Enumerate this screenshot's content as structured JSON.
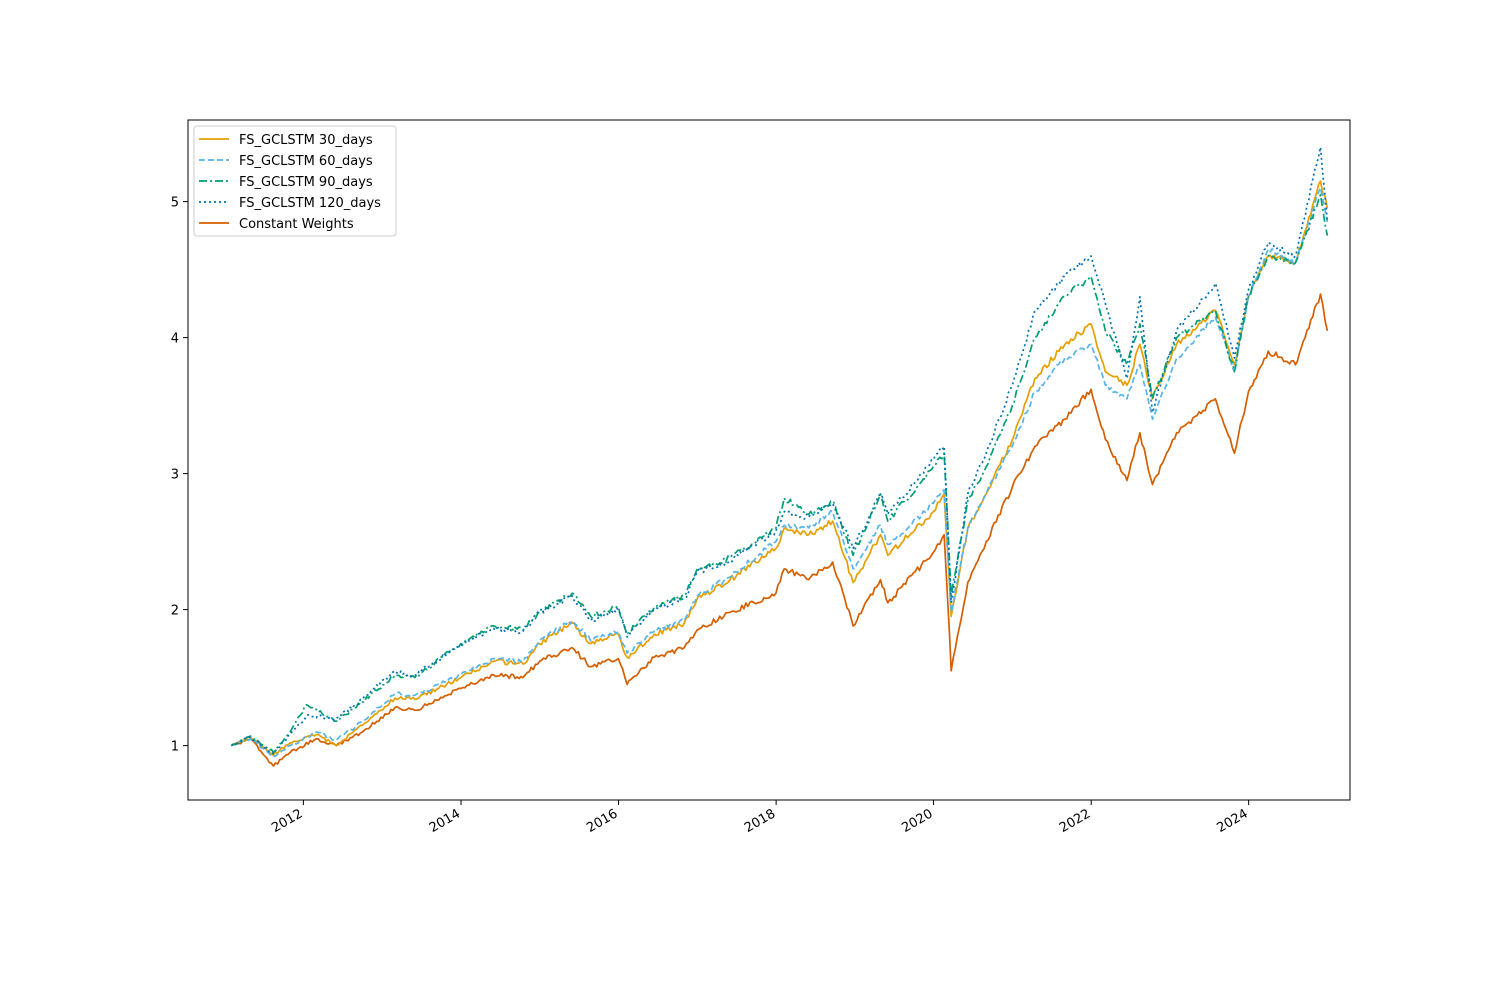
{
  "chart_data": {
    "type": "line",
    "title": "",
    "xlabel": "",
    "ylabel": "",
    "xlim": [
      "2010-07-15",
      "2025-04-15"
    ],
    "ylim": [
      0.6,
      5.6
    ],
    "x_ticks": [
      "2012",
      "2014",
      "2016",
      "2018",
      "2020",
      "2022",
      "2024"
    ],
    "y_ticks": [
      "1",
      "2",
      "3",
      "4",
      "5"
    ],
    "grid": false,
    "legend_position": "top-left",
    "series": [
      {
        "name": "FS_GCLSTM 30_days",
        "color": "#E69F00",
        "dash": "solid",
        "points": [
          [
            "2011-02-01",
            1.0
          ],
          [
            "2011-05-01",
            1.06
          ],
          [
            "2011-08-15",
            0.93
          ],
          [
            "2011-11-01",
            1.02
          ],
          [
            "2012-03-01",
            1.08
          ],
          [
            "2012-06-01",
            1.0
          ],
          [
            "2012-10-01",
            1.15
          ],
          [
            "2013-03-01",
            1.35
          ],
          [
            "2013-06-01",
            1.34
          ],
          [
            "2013-12-31",
            1.5
          ],
          [
            "2014-06-01",
            1.62
          ],
          [
            "2014-10-15",
            1.6
          ],
          [
            "2014-12-31",
            1.75
          ],
          [
            "2015-06-01",
            1.9
          ],
          [
            "2015-08-25",
            1.75
          ],
          [
            "2015-12-31",
            1.82
          ],
          [
            "2016-02-10",
            1.65
          ],
          [
            "2016-06-15",
            1.82
          ],
          [
            "2016-11-01",
            1.9
          ],
          [
            "2016-12-31",
            2.08
          ],
          [
            "2017-06-01",
            2.22
          ],
          [
            "2017-12-31",
            2.45
          ],
          [
            "2018-02-08",
            2.6
          ],
          [
            "2018-06-01",
            2.55
          ],
          [
            "2018-09-20",
            2.65
          ],
          [
            "2018-12-24",
            2.2
          ],
          [
            "2019-04-30",
            2.55
          ],
          [
            "2019-06-03",
            2.4
          ],
          [
            "2019-12-31",
            2.72
          ],
          [
            "2020-02-19",
            2.85
          ],
          [
            "2020-03-23",
            1.95
          ],
          [
            "2020-06-08",
            2.6
          ],
          [
            "2020-09-01",
            2.85
          ],
          [
            "2020-12-31",
            3.25
          ],
          [
            "2021-04-15",
            3.7
          ],
          [
            "2021-09-01",
            3.95
          ],
          [
            "2021-12-31",
            4.1
          ],
          [
            "2022-03-08",
            3.75
          ],
          [
            "2022-06-16",
            3.65
          ],
          [
            "2022-08-15",
            3.95
          ],
          [
            "2022-10-12",
            3.55
          ],
          [
            "2023-02-01",
            3.95
          ],
          [
            "2023-07-31",
            4.2
          ],
          [
            "2023-10-27",
            3.8
          ],
          [
            "2023-12-31",
            4.3
          ],
          [
            "2024-04-01",
            4.6
          ],
          [
            "2024-08-05",
            4.55
          ],
          [
            "2024-11-29",
            5.15
          ],
          [
            "2024-12-31",
            4.95
          ]
        ]
      },
      {
        "name": "FS_GCLSTM 60_days",
        "color": "#56B4E9",
        "dash": "dashed",
        "points": [
          [
            "2011-02-01",
            1.0
          ],
          [
            "2011-05-01",
            1.05
          ],
          [
            "2011-08-15",
            0.92
          ],
          [
            "2011-11-01",
            1.0
          ],
          [
            "2012-03-01",
            1.1
          ],
          [
            "2012-06-01",
            1.04
          ],
          [
            "2012-10-01",
            1.18
          ],
          [
            "2013-03-01",
            1.38
          ],
          [
            "2013-06-01",
            1.37
          ],
          [
            "2013-12-31",
            1.52
          ],
          [
            "2014-06-01",
            1.64
          ],
          [
            "2014-10-15",
            1.62
          ],
          [
            "2014-12-31",
            1.77
          ],
          [
            "2015-06-01",
            1.92
          ],
          [
            "2015-08-25",
            1.77
          ],
          [
            "2015-12-31",
            1.84
          ],
          [
            "2016-02-10",
            1.68
          ],
          [
            "2016-06-15",
            1.84
          ],
          [
            "2016-11-01",
            1.92
          ],
          [
            "2016-12-31",
            2.1
          ],
          [
            "2017-06-01",
            2.24
          ],
          [
            "2017-12-31",
            2.5
          ],
          [
            "2018-02-08",
            2.62
          ],
          [
            "2018-06-01",
            2.6
          ],
          [
            "2018-09-20",
            2.72
          ],
          [
            "2018-12-24",
            2.3
          ],
          [
            "2019-04-30",
            2.62
          ],
          [
            "2019-06-03",
            2.48
          ],
          [
            "2019-12-31",
            2.78
          ],
          [
            "2020-02-19",
            2.88
          ],
          [
            "2020-03-23",
            1.98
          ],
          [
            "2020-06-08",
            2.6
          ],
          [
            "2020-09-01",
            2.85
          ],
          [
            "2020-12-31",
            3.2
          ],
          [
            "2021-04-15",
            3.6
          ],
          [
            "2021-09-01",
            3.85
          ],
          [
            "2021-12-31",
            3.95
          ],
          [
            "2022-03-08",
            3.65
          ],
          [
            "2022-06-16",
            3.55
          ],
          [
            "2022-08-15",
            3.8
          ],
          [
            "2022-10-12",
            3.4
          ],
          [
            "2023-02-01",
            3.85
          ],
          [
            "2023-07-31",
            4.15
          ],
          [
            "2023-10-27",
            3.75
          ],
          [
            "2023-12-31",
            4.3
          ],
          [
            "2024-04-01",
            4.65
          ],
          [
            "2024-08-05",
            4.55
          ],
          [
            "2024-11-29",
            5.1
          ],
          [
            "2024-12-31",
            4.85
          ]
        ]
      },
      {
        "name": "FS_GCLSTM 90_days",
        "color": "#009E73",
        "dash": "dashdot",
        "points": [
          [
            "2011-02-01",
            1.0
          ],
          [
            "2011-05-01",
            1.07
          ],
          [
            "2011-08-15",
            0.95
          ],
          [
            "2011-11-01",
            1.1
          ],
          [
            "2012-01-15",
            1.3
          ],
          [
            "2012-06-01",
            1.18
          ],
          [
            "2012-10-01",
            1.32
          ],
          [
            "2013-03-01",
            1.52
          ],
          [
            "2013-06-01",
            1.5
          ],
          [
            "2013-12-31",
            1.75
          ],
          [
            "2014-06-01",
            1.88
          ],
          [
            "2014-10-15",
            1.85
          ],
          [
            "2014-12-31",
            1.98
          ],
          [
            "2015-06-01",
            2.12
          ],
          [
            "2015-08-25",
            1.95
          ],
          [
            "2015-12-31",
            2.02
          ],
          [
            "2016-02-10",
            1.82
          ],
          [
            "2016-06-15",
            2.02
          ],
          [
            "2016-11-01",
            2.1
          ],
          [
            "2016-12-31",
            2.3
          ],
          [
            "2017-06-01",
            2.38
          ],
          [
            "2017-12-31",
            2.6
          ],
          [
            "2018-02-08",
            2.82
          ],
          [
            "2018-06-01",
            2.7
          ],
          [
            "2018-09-20",
            2.8
          ],
          [
            "2018-12-24",
            2.4
          ],
          [
            "2019-04-30",
            2.85
          ],
          [
            "2019-06-03",
            2.65
          ],
          [
            "2019-12-31",
            3.05
          ],
          [
            "2020-02-19",
            3.15
          ],
          [
            "2020-03-23",
            2.1
          ],
          [
            "2020-06-08",
            2.8
          ],
          [
            "2020-09-01",
            3.05
          ],
          [
            "2020-12-31",
            3.5
          ],
          [
            "2021-04-15",
            4.0
          ],
          [
            "2021-09-01",
            4.3
          ],
          [
            "2021-12-31",
            4.45
          ],
          [
            "2022-03-08",
            4.05
          ],
          [
            "2022-06-16",
            3.8
          ],
          [
            "2022-08-15",
            4.1
          ],
          [
            "2022-10-12",
            3.55
          ],
          [
            "2023-02-01",
            4.0
          ],
          [
            "2023-07-31",
            4.2
          ],
          [
            "2023-10-27",
            3.75
          ],
          [
            "2023-12-31",
            4.3
          ],
          [
            "2024-04-01",
            4.6
          ],
          [
            "2024-08-05",
            4.55
          ],
          [
            "2024-11-29",
            5.05
          ],
          [
            "2024-12-31",
            4.75
          ]
        ]
      },
      {
        "name": "FS_GCLSTM 120_days",
        "color": "#0072B2",
        "dash": "dotted",
        "points": [
          [
            "2011-02-01",
            1.0
          ],
          [
            "2011-05-01",
            1.06
          ],
          [
            "2011-08-15",
            0.94
          ],
          [
            "2011-11-01",
            1.08
          ],
          [
            "2012-01-15",
            1.22
          ],
          [
            "2012-06-01",
            1.2
          ],
          [
            "2012-10-01",
            1.34
          ],
          [
            "2013-03-01",
            1.55
          ],
          [
            "2013-06-01",
            1.52
          ],
          [
            "2013-12-31",
            1.74
          ],
          [
            "2014-06-01",
            1.86
          ],
          [
            "2014-10-15",
            1.84
          ],
          [
            "2014-12-31",
            1.98
          ],
          [
            "2015-06-01",
            2.1
          ],
          [
            "2015-08-25",
            1.92
          ],
          [
            "2015-12-31",
            2.0
          ],
          [
            "2016-02-10",
            1.8
          ],
          [
            "2016-06-15",
            2.0
          ],
          [
            "2016-11-01",
            2.08
          ],
          [
            "2016-12-31",
            2.28
          ],
          [
            "2017-06-01",
            2.36
          ],
          [
            "2017-12-31",
            2.58
          ],
          [
            "2018-02-08",
            2.72
          ],
          [
            "2018-06-01",
            2.68
          ],
          [
            "2018-09-20",
            2.78
          ],
          [
            "2018-12-24",
            2.45
          ],
          [
            "2019-04-30",
            2.85
          ],
          [
            "2019-06-03",
            2.7
          ],
          [
            "2019-12-31",
            3.1
          ],
          [
            "2020-02-19",
            3.2
          ],
          [
            "2020-03-23",
            2.05
          ],
          [
            "2020-06-08",
            2.85
          ],
          [
            "2020-09-01",
            3.15
          ],
          [
            "2020-12-31",
            3.65
          ],
          [
            "2021-04-15",
            4.2
          ],
          [
            "2021-09-01",
            4.45
          ],
          [
            "2021-12-31",
            4.6
          ],
          [
            "2022-03-08",
            4.25
          ],
          [
            "2022-06-16",
            3.7
          ],
          [
            "2022-08-15",
            4.3
          ],
          [
            "2022-10-12",
            3.45
          ],
          [
            "2023-02-01",
            4.05
          ],
          [
            "2023-07-31",
            4.4
          ],
          [
            "2023-10-27",
            3.85
          ],
          [
            "2023-12-31",
            4.35
          ],
          [
            "2024-04-01",
            4.7
          ],
          [
            "2024-08-05",
            4.6
          ],
          [
            "2024-11-29",
            5.4
          ],
          [
            "2024-12-31",
            4.85
          ]
        ]
      },
      {
        "name": "Constant Weights",
        "color": "#D55E00",
        "dash": "solid",
        "points": [
          [
            "2011-02-01",
            1.0
          ],
          [
            "2011-05-01",
            1.05
          ],
          [
            "2011-08-15",
            0.85
          ],
          [
            "2011-11-01",
            0.95
          ],
          [
            "2012-03-01",
            1.05
          ],
          [
            "2012-06-01",
            1.0
          ],
          [
            "2012-10-01",
            1.1
          ],
          [
            "2013-03-01",
            1.28
          ],
          [
            "2013-06-01",
            1.26
          ],
          [
            "2013-12-31",
            1.42
          ],
          [
            "2014-06-01",
            1.52
          ],
          [
            "2014-10-15",
            1.5
          ],
          [
            "2014-12-31",
            1.62
          ],
          [
            "2015-06-01",
            1.72
          ],
          [
            "2015-08-25",
            1.58
          ],
          [
            "2015-12-31",
            1.64
          ],
          [
            "2016-02-10",
            1.45
          ],
          [
            "2016-06-15",
            1.65
          ],
          [
            "2016-11-01",
            1.72
          ],
          [
            "2016-12-31",
            1.85
          ],
          [
            "2017-06-01",
            1.98
          ],
          [
            "2017-12-31",
            2.12
          ],
          [
            "2018-02-08",
            2.3
          ],
          [
            "2018-06-01",
            2.22
          ],
          [
            "2018-09-20",
            2.35
          ],
          [
            "2018-12-24",
            1.88
          ],
          [
            "2019-04-30",
            2.22
          ],
          [
            "2019-06-03",
            2.05
          ],
          [
            "2019-12-31",
            2.42
          ],
          [
            "2020-02-19",
            2.55
          ],
          [
            "2020-03-23",
            1.55
          ],
          [
            "2020-06-08",
            2.2
          ],
          [
            "2020-09-01",
            2.5
          ],
          [
            "2020-12-31",
            2.9
          ],
          [
            "2021-04-15",
            3.2
          ],
          [
            "2021-09-01",
            3.4
          ],
          [
            "2021-12-31",
            3.62
          ],
          [
            "2022-03-08",
            3.25
          ],
          [
            "2022-06-16",
            2.95
          ],
          [
            "2022-08-15",
            3.3
          ],
          [
            "2022-10-12",
            2.92
          ],
          [
            "2023-02-01",
            3.3
          ],
          [
            "2023-07-31",
            3.55
          ],
          [
            "2023-10-27",
            3.15
          ],
          [
            "2023-12-31",
            3.6
          ],
          [
            "2024-04-01",
            3.9
          ],
          [
            "2024-08-05",
            3.8
          ],
          [
            "2024-11-29",
            4.32
          ],
          [
            "2024-12-31",
            4.05
          ]
        ]
      }
    ]
  }
}
